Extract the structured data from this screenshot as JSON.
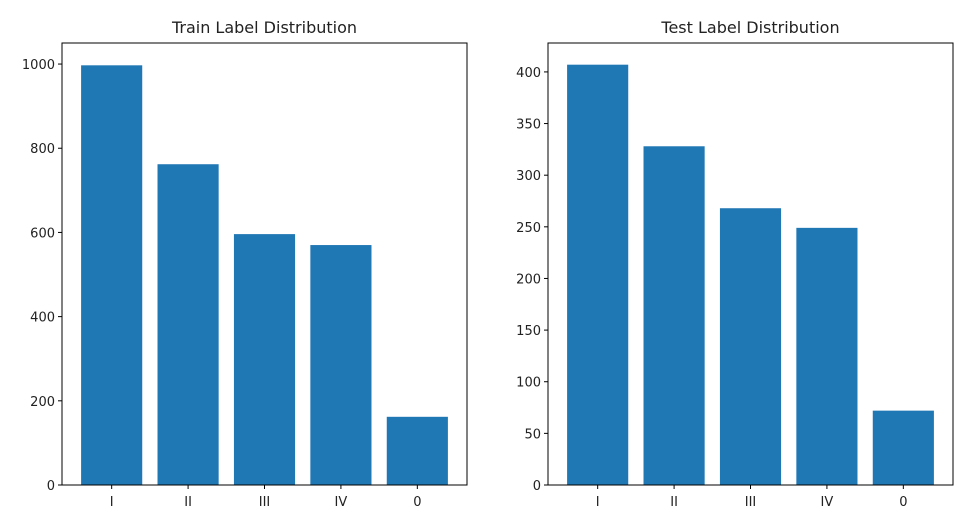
{
  "chart_data": [
    {
      "type": "bar",
      "title": "Train Label Distribution",
      "categories": [
        "I",
        "II",
        "III",
        "IV",
        "0"
      ],
      "values": [
        997,
        762,
        596,
        570,
        162
      ],
      "yticks": [
        0,
        200,
        400,
        600,
        800,
        1000
      ],
      "ylim": [
        0,
        1050
      ],
      "xlabel": "",
      "ylabel": "",
      "grid": false,
      "color": "#1f77b4"
    },
    {
      "type": "bar",
      "title": "Test Label Distribution",
      "categories": [
        "I",
        "II",
        "III",
        "IV",
        "0"
      ],
      "values": [
        407,
        328,
        268,
        249,
        72
      ],
      "yticks": [
        0,
        50,
        100,
        150,
        200,
        250,
        300,
        350,
        400
      ],
      "ylim": [
        0,
        428
      ],
      "xlabel": "",
      "ylabel": "",
      "grid": false,
      "color": "#1f77b4"
    }
  ]
}
